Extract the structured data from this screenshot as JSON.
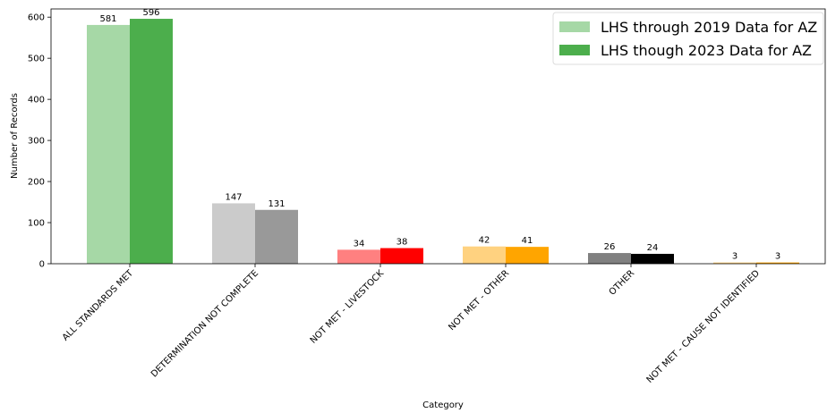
{
  "chart_data": {
    "type": "bar",
    "title": "",
    "xlabel": "Category",
    "ylabel": "Number of Records",
    "ylim": [
      0,
      620
    ],
    "yticks": [
      0,
      100,
      200,
      300,
      400,
      500,
      600
    ],
    "grid": false,
    "legend_position": "top-right",
    "categories": [
      "ALL STANDARDS MET",
      "DETERMINATION NOT COMPLETE",
      "NOT MET - LIVESTOCK",
      "NOT MET - OTHER",
      "OTHER",
      "NOT MET - CAUSE NOT IDENTIFIED"
    ],
    "series": [
      {
        "name": "LHS through 2019 Data for AZ",
        "legend_color": "#a6d8a6",
        "values": [
          581,
          147,
          34,
          42,
          26,
          3
        ],
        "colors": [
          "#a6d8a6",
          "#cbcbcb",
          "#ff8080",
          "#ffd280",
          "#808080",
          "#ffd280"
        ]
      },
      {
        "name": "LHS though 2023 Data for AZ",
        "legend_color": "#4cae4c",
        "values": [
          596,
          131,
          38,
          41,
          24,
          3
        ],
        "colors": [
          "#4cae4c",
          "#999999",
          "#ff0000",
          "#ffa500",
          "#000000",
          "#ffa500"
        ]
      }
    ]
  }
}
